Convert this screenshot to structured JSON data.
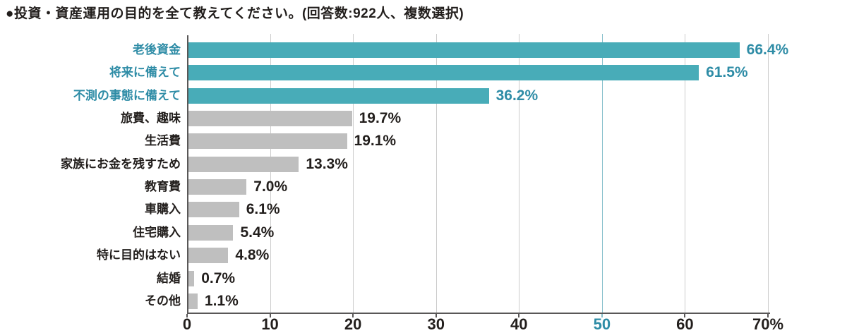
{
  "title": "●投資・資産運用の目的を全て教えてください。(回答数:922人、複数選択)",
  "colors": {
    "teal_bar": "#48ACB8",
    "teal_text": "#2E8CA6",
    "teal_gridline": "#85BFCB",
    "gray_bar": "#BFBFBF",
    "dark_text": "#221E1C",
    "axis_line": "#595757",
    "gridline": "#CCCCCC",
    "background": "#FFFFFF"
  },
  "chart_data": {
    "type": "bar",
    "orientation": "horizontal",
    "title": "投資・資産運用の目的を全て教えてください。",
    "subtitle": "回答数:922人、複数選択",
    "categories": [
      "老後資金",
      "将来に備えて",
      "不測の事態に備えて",
      "旅費、趣味",
      "生活費",
      "家族にお金を残すため",
      "教育費",
      "車購入",
      "住宅購入",
      "特に目的はない",
      "結婚",
      "その他"
    ],
    "values": [
      66.4,
      61.5,
      36.2,
      19.7,
      19.1,
      13.3,
      7.0,
      6.1,
      5.4,
      4.8,
      0.7,
      1.1
    ],
    "value_labels": [
      "66.4%",
      "61.5%",
      "36.2%",
      "19.7%",
      "19.1%",
      "13.3%",
      "7.0%",
      "6.1%",
      "5.4%",
      "4.8%",
      "0.7%",
      "1.1%"
    ],
    "highlighted": [
      true,
      true,
      true,
      false,
      false,
      false,
      false,
      false,
      false,
      false,
      false,
      false
    ],
    "xlim": [
      0,
      70
    ],
    "x_tick_values": [
      0,
      10,
      20,
      30,
      40,
      50,
      60,
      70
    ],
    "x_tick_labels": [
      "0",
      "10",
      "20",
      "30",
      "40",
      "50",
      "60",
      "70%"
    ],
    "highlighted_tick": 50,
    "grid": true,
    "legend": false,
    "ylabel": "",
    "xlabel": ""
  }
}
